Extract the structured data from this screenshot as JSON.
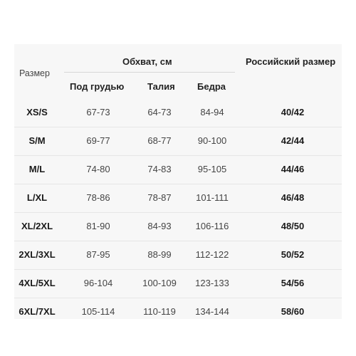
{
  "headers": {
    "size": "Размер",
    "girth_group": "Обхват, см",
    "russian_size": "Российский размер",
    "under_bust": "Под грудью",
    "waist": "Талия",
    "hips": "Бедра"
  },
  "rows": [
    {
      "size": "XS/S",
      "under_bust": "67-73",
      "waist": "64-73",
      "hips": "84-94",
      "ru": "40/42"
    },
    {
      "size": "S/M",
      "under_bust": "69-77",
      "waist": "68-77",
      "hips": "90-100",
      "ru": "42/44"
    },
    {
      "size": "M/L",
      "under_bust": "74-80",
      "waist": "74-83",
      "hips": "95-105",
      "ru": "44/46"
    },
    {
      "size": "L/XL",
      "under_bust": "78-86",
      "waist": "78-87",
      "hips": "101-111",
      "ru": "46/48"
    },
    {
      "size": "XL/2XL",
      "under_bust": "81-90",
      "waist": "84-93",
      "hips": "106-116",
      "ru": "48/50"
    },
    {
      "size": "2XL/3XL",
      "under_bust": "87-95",
      "waist": "88-99",
      "hips": "112-122",
      "ru": "50/52"
    },
    {
      "size": "4XL/5XL",
      "under_bust": "96-104",
      "waist": "100-109",
      "hips": "123-133",
      "ru": "54/56"
    },
    {
      "size": "6XL/7XL",
      "under_bust": "105-114",
      "waist": "110-119",
      "hips": "134-144",
      "ru": "58/60"
    }
  ]
}
